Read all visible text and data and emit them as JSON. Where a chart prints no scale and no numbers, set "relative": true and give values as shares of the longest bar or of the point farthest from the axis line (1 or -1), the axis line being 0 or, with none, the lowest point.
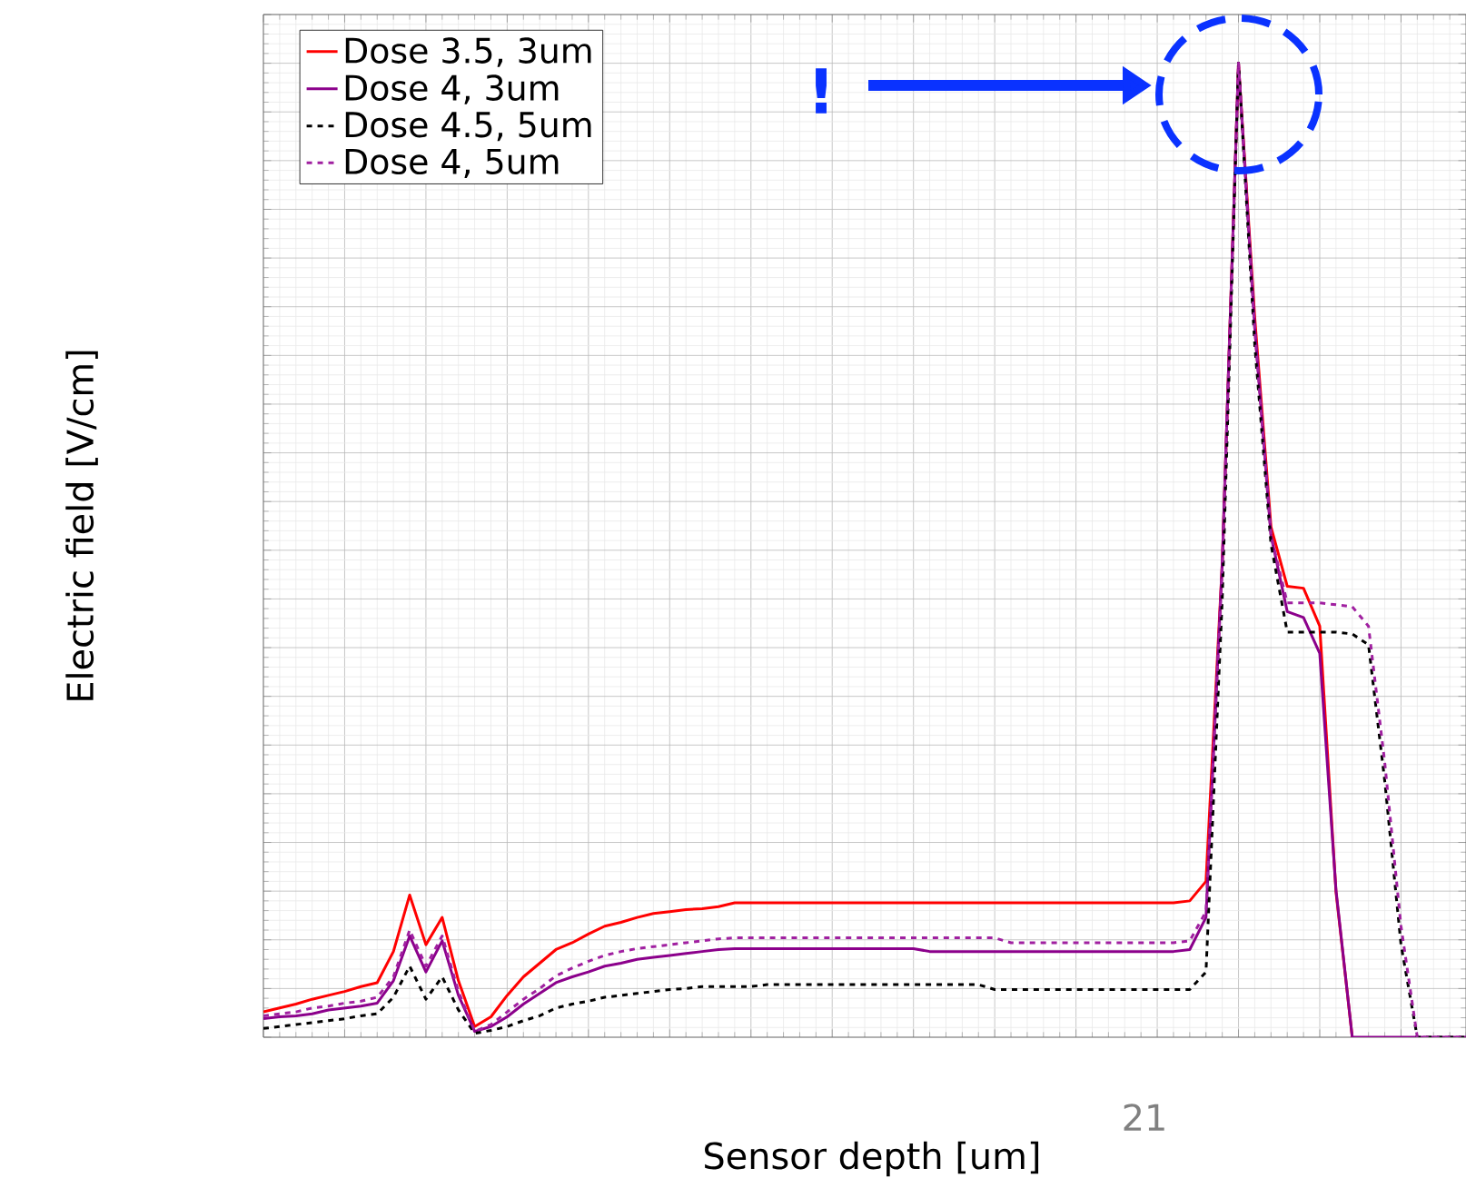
{
  "chart_data": {
    "type": "line",
    "xlabel": "Sensor depth [um]",
    "ylabel": "Electric field [V/cm]",
    "relative": true,
    "grid": true,
    "legend": "top left",
    "marker": "none",
    "annotations": [
      "!",
      "21"
    ],
    "categories": [
      null,
      null,
      null,
      null,
      null,
      null,
      null,
      null,
      null,
      null,
      null,
      null,
      null,
      null,
      null,
      null,
      null,
      null,
      null,
      null,
      null,
      null,
      null,
      null,
      null,
      null,
      null,
      null,
      null,
      null,
      null,
      null,
      null,
      null,
      null,
      null,
      null,
      null,
      null,
      null,
      null,
      null,
      null,
      null,
      null,
      null,
      null,
      null,
      null,
      null,
      null,
      null,
      null,
      null,
      null,
      null,
      null,
      null,
      null,
      null,
      null,
      null,
      null,
      null,
      null,
      null,
      null,
      null,
      null,
      null,
      null,
      null,
      null,
      null,
      null
    ],
    "series": [
      {
        "name": "Dose 3.5, 3um",
        "color": "#ff0000",
        "line_style": "solid",
        "values": [
          0.026,
          0.03,
          0.034,
          0.039,
          0.043,
          0.047,
          0.052,
          0.056,
          0.088,
          0.146,
          0.095,
          0.123,
          0.058,
          0.011,
          0.021,
          0.043,
          0.062,
          0.076,
          0.09,
          0.097,
          0.106,
          0.114,
          0.118,
          0.123,
          0.127,
          0.129,
          0.131,
          0.132,
          0.134,
          0.138,
          0.138,
          0.138,
          0.138,
          0.138,
          0.138,
          0.138,
          0.138,
          0.138,
          0.138,
          0.138,
          0.138,
          0.138,
          0.138,
          0.138,
          0.138,
          0.138,
          0.138,
          0.138,
          0.138,
          0.138,
          0.138,
          0.138,
          0.138,
          0.138,
          0.138,
          0.138,
          0.138,
          0.14,
          0.16,
          0.487,
          1.0,
          0.739,
          0.524,
          0.463,
          0.461,
          0.422,
          0.149,
          0,
          null,
          null,
          null,
          null,
          null,
          null,
          null
        ]
      },
      {
        "name": "Dose 4, 3um",
        "color": "#8b008b",
        "line_style": "solid",
        "values": [
          0.019,
          0.021,
          0.022,
          0.024,
          0.028,
          0.03,
          0.032,
          0.035,
          0.058,
          0.104,
          0.067,
          0.099,
          0.043,
          0.006,
          0.011,
          0.021,
          0.034,
          0.045,
          0.056,
          0.062,
          0.067,
          0.073,
          0.076,
          0.08,
          0.082,
          0.084,
          0.086,
          0.088,
          0.09,
          0.091,
          0.091,
          0.091,
          0.091,
          0.091,
          0.091,
          0.091,
          0.091,
          0.091,
          0.091,
          0.091,
          0.091,
          0.088,
          0.088,
          0.088,
          0.088,
          0.088,
          0.088,
          0.088,
          0.088,
          0.088,
          0.088,
          0.088,
          0.088,
          0.088,
          0.088,
          0.088,
          0.088,
          0.09,
          0.123,
          0.487,
          1.0,
          0.729,
          0.515,
          0.437,
          0.431,
          0.394,
          0.151,
          0,
          0,
          0,
          0,
          0,
          0,
          0,
          0
        ]
      },
      {
        "name": "Dose 4.5, 5um",
        "color": "#000000",
        "line_style": "dashed",
        "values": [
          0.009,
          0.011,
          0.013,
          0.015,
          0.017,
          0.019,
          0.022,
          0.024,
          0.041,
          0.073,
          0.039,
          0.062,
          0.028,
          0.004,
          0.007,
          0.011,
          0.017,
          0.022,
          0.03,
          0.034,
          0.037,
          0.041,
          0.043,
          0.045,
          0.047,
          0.049,
          0.05,
          0.052,
          0.052,
          0.052,
          0.052,
          0.054,
          0.054,
          0.054,
          0.054,
          0.054,
          0.054,
          0.054,
          0.054,
          0.054,
          0.054,
          0.054,
          0.054,
          0.054,
          0.054,
          0.049,
          0.049,
          0.049,
          0.049,
          0.049,
          0.049,
          0.049,
          0.049,
          0.049,
          0.049,
          0.049,
          0.049,
          0.049,
          0.067,
          0.45,
          1.0,
          0.711,
          0.506,
          0.416,
          0.416,
          0.416,
          0.416,
          0.414,
          0.403,
          0.263,
          0.095,
          0,
          0,
          0,
          0
        ]
      },
      {
        "name": "Dose 4, 5um",
        "color": "#a020a0",
        "line_style": "dashed",
        "values": [
          0.022,
          0.024,
          0.026,
          0.03,
          0.032,
          0.035,
          0.037,
          0.041,
          0.062,
          0.11,
          0.073,
          0.104,
          0.047,
          0.006,
          0.013,
          0.026,
          0.039,
          0.05,
          0.063,
          0.071,
          0.078,
          0.084,
          0.088,
          0.091,
          0.093,
          0.095,
          0.097,
          0.099,
          0.101,
          0.102,
          0.102,
          0.102,
          0.102,
          0.102,
          0.102,
          0.102,
          0.102,
          0.102,
          0.102,
          0.102,
          0.102,
          0.102,
          0.102,
          0.102,
          0.102,
          0.102,
          0.097,
          0.097,
          0.097,
          0.097,
          0.097,
          0.097,
          0.097,
          0.097,
          0.097,
          0.097,
          0.097,
          0.099,
          0.129,
          0.483,
          1.0,
          0.726,
          0.515,
          0.446,
          0.446,
          0.446,
          0.444,
          0.442,
          0.422,
          0.282,
          0.114,
          0,
          0,
          0,
          0
        ]
      }
    ]
  }
}
